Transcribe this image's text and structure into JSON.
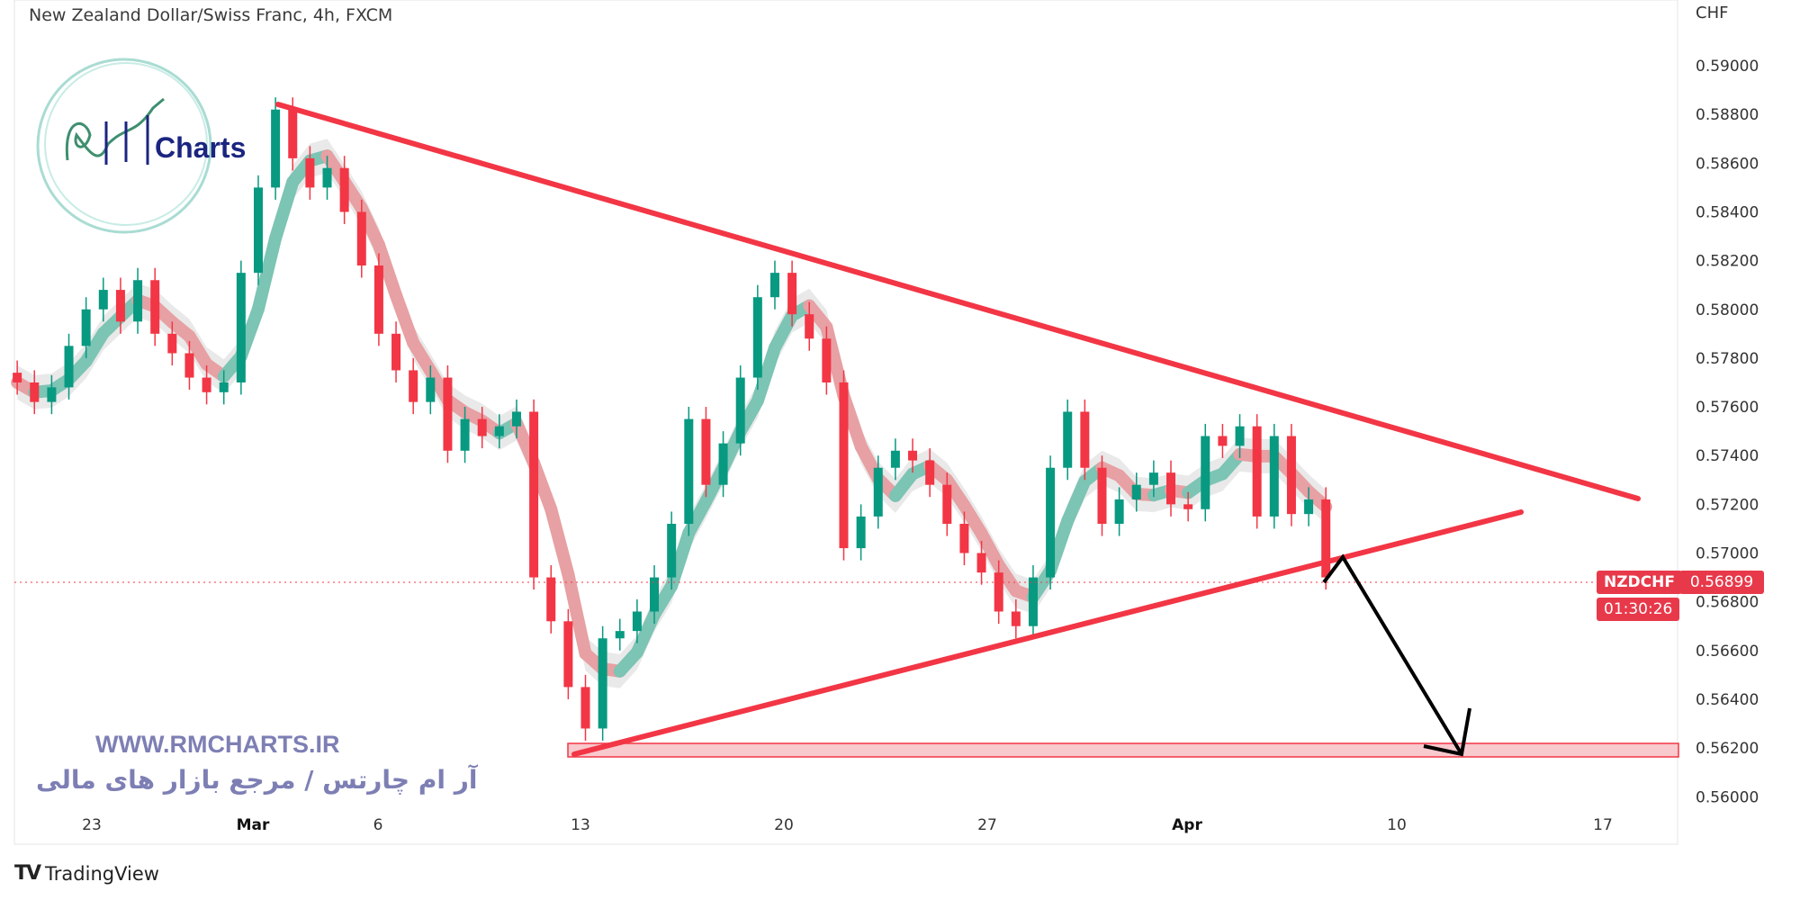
{
  "header": {
    "title": "New Zealand Dollar/Swiss Franc, 4h, FXCM",
    "currency": "CHF"
  },
  "watermark": {
    "url": "WWW.RMCHARTS.IR",
    "tagline": "آر ام چارتس / مرجع بازار های مالی",
    "logo_text": "Charts"
  },
  "footer": {
    "brand": "TradingView"
  },
  "last_price": {
    "symbol": "NZDCHF",
    "price": "0.56899",
    "countdown": "01:30:26"
  },
  "colors": {
    "up": "#089981",
    "down": "#f23645",
    "trendline": "#f23645",
    "arrow": "#000000",
    "target_zone": "#f8c9cd",
    "label": "#e8394a"
  },
  "chart_data": {
    "type": "candlestick",
    "title": "New Zealand Dollar/Swiss Franc, 4h, FXCM",
    "ylabel": "CHF",
    "ylim": [
      0.56,
      0.59
    ],
    "y_ticks": [
      "0.59000",
      "0.58800",
      "0.58600",
      "0.58400",
      "0.58200",
      "0.58000",
      "0.57800",
      "0.57600",
      "0.57400",
      "0.57200",
      "0.57000",
      "0.56800",
      "0.56600",
      "0.56400",
      "0.56200",
      "0.56000"
    ],
    "x_ticks": [
      "23",
      "Mar",
      "6",
      "13",
      "20",
      "27",
      "Apr",
      "10",
      "17"
    ],
    "closes_approx": [
      0.577,
      0.5762,
      0.5768,
      0.5785,
      0.58,
      0.5808,
      0.5795,
      0.5812,
      0.579,
      0.5782,
      0.5772,
      0.5766,
      0.577,
      0.5815,
      0.585,
      0.5882,
      0.5862,
      0.585,
      0.5858,
      0.584,
      0.5818,
      0.579,
      0.5775,
      0.5762,
      0.5772,
      0.5742,
      0.5755,
      0.5748,
      0.5752,
      0.5758,
      0.569,
      0.5672,
      0.5645,
      0.5628,
      0.5665,
      0.5668,
      0.5676,
      0.569,
      0.5712,
      0.5755,
      0.5728,
      0.5745,
      0.5772,
      0.5805,
      0.5815,
      0.5798,
      0.5788,
      0.577,
      0.5702,
      0.5715,
      0.5735,
      0.5742,
      0.5738,
      0.5728,
      0.5712,
      0.57,
      0.5692,
      0.5676,
      0.567,
      0.569,
      0.5735,
      0.5758,
      0.5735,
      0.5712,
      0.5722,
      0.5728,
      0.5733,
      0.572,
      0.5718,
      0.5748,
      0.5744,
      0.5752,
      0.5715,
      0.5748,
      0.5716,
      0.5722,
      0.569
    ],
    "last_price": 0.56899,
    "drawings": {
      "descending_trendline": {
        "from_price": 0.5884,
        "to_price": 0.5724
      },
      "ascending_trendline": {
        "from_price": 0.5619,
        "to_price": 0.5718
      },
      "target_zone": [
        0.5619,
        0.5623
      ],
      "projection_arrow": "down to 0.5620"
    }
  }
}
